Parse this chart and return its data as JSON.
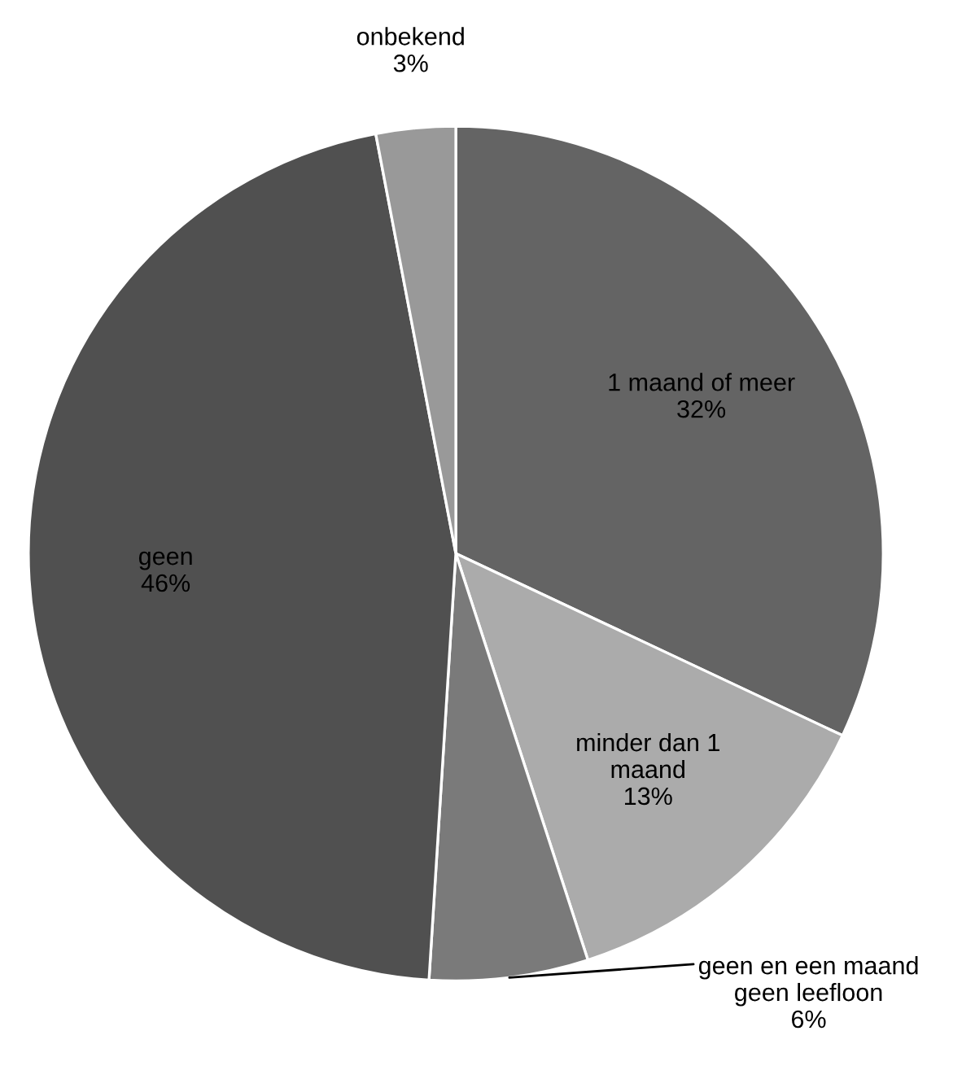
{
  "chart_data": {
    "type": "pie",
    "categories": [
      "1 maand of meer",
      "minder dan 1\nmaand",
      "geen en een maand\ngeen leefloon",
      "geen",
      "onbekend"
    ],
    "values": [
      32,
      13,
      6,
      46,
      3
    ],
    "colors": [
      "#646464",
      "#ababab",
      "#7a7a7a",
      "#505050",
      "#999999"
    ],
    "value_labels": [
      "32%",
      "13%",
      "6%",
      "46%",
      "3%"
    ],
    "legend": false
  }
}
